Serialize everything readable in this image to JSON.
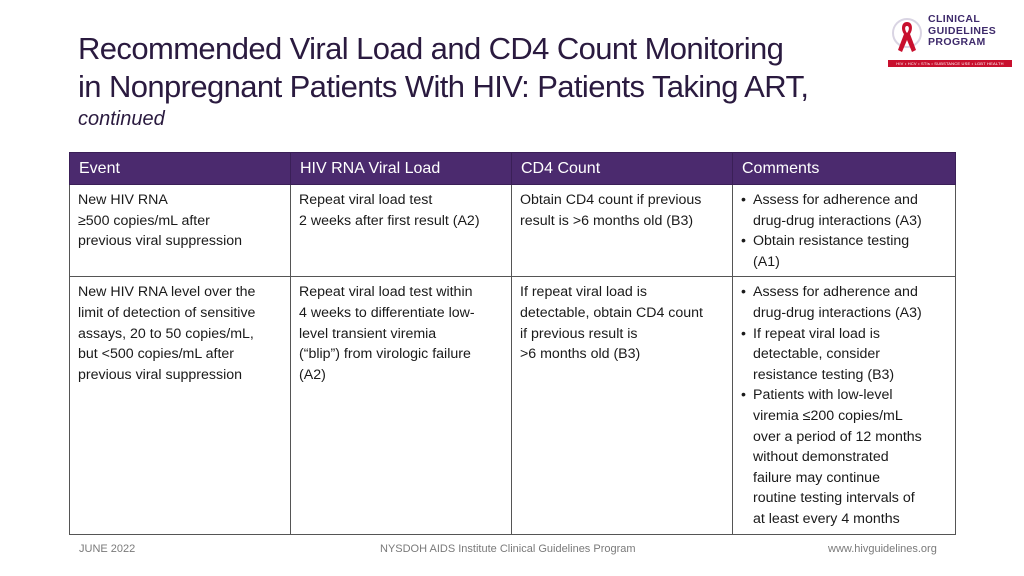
{
  "title": {
    "line1": "Recommended Viral Load and CD4 Count Monitoring",
    "line2": "in Nonpregnant Patients With HIV: Patients Taking ART,",
    "subtitle": "continued"
  },
  "logo": {
    "line1": "CLINICAL",
    "line2": "GUIDELINES",
    "line3": "PROGRAM",
    "bar_text": "HIV • HCV • STIs • SUBSTANCE USE • LGBT HEALTH",
    "ribbon_color": "#c8102e",
    "text_color": "#3e2a6b"
  },
  "table": {
    "headers": [
      "Event",
      "HIV RNA Viral Load",
      "CD4 Count",
      "Comments"
    ],
    "header_color": "#4b2a6e",
    "rows": [
      {
        "event": [
          "New HIV RNA",
          "≥500 copies/mL after",
          "previous viral suppression"
        ],
        "viral_load": [
          "Repeat viral load test",
          "2 weeks after first result (A2)"
        ],
        "cd4": [
          "Obtain CD4 count if previous",
          "result is >6 months old (B3)"
        ],
        "comments": [
          [
            "Assess for adherence and",
            "drug-drug interactions (A3)"
          ],
          [
            "Obtain resistance testing",
            "(A1)"
          ]
        ]
      },
      {
        "event": [
          "New HIV RNA level over the",
          "limit of detection of sensitive",
          "assays, 20 to 50 copies/mL,",
          "but <500 copies/mL after",
          "previous viral suppression"
        ],
        "viral_load": [
          "Repeat viral load test within",
          "4 weeks to differentiate low-",
          "level transient viremia",
          "(“blip”) from virologic failure",
          "(A2)"
        ],
        "cd4": [
          "If repeat viral load is",
          "detectable, obtain CD4 count",
          "if previous result is",
          ">6 months old (B3)"
        ],
        "comments": [
          [
            "Assess for adherence and",
            "drug-drug interactions (A3)"
          ],
          [
            "If repeat viral load is",
            "detectable, consider",
            "resistance testing (B3)"
          ],
          [
            "Patients with low-level",
            "viremia ≤200 copies/mL",
            "over a period of 12 months",
            "without demonstrated",
            "failure may continue",
            "routine testing intervals of",
            "at least every 4 months"
          ]
        ]
      }
    ]
  },
  "footer": {
    "date": "JUNE 2022",
    "org": "NYSDOH AIDS Institute Clinical Guidelines Program",
    "url": "www.hivguidelines.org"
  }
}
